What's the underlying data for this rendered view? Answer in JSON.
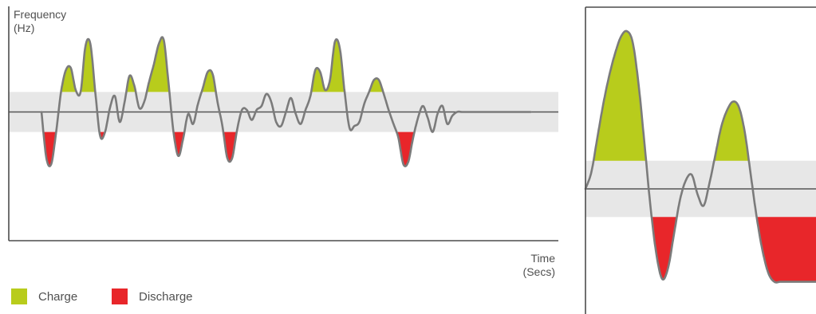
{
  "chart_data": [
    {
      "type": "line",
      "ylabel": "Frequency\n(Hz)",
      "xlabel": "Time\n(Secs)",
      "title": "",
      "grid": false,
      "deadband": [
        -1,
        1
      ],
      "x": [
        0,
        0.4,
        0.8,
        1.2,
        1.6,
        2.0,
        2.4,
        2.8,
        3.2,
        3.6,
        4.0,
        4.4,
        4.8,
        5.2,
        5.6,
        6.0,
        6.4,
        6.8,
        7.2,
        7.6,
        8.0,
        8.4,
        8.8,
        9.2,
        9.6,
        10.0,
        10.4,
        10.8,
        11.2,
        11.6,
        12.0,
        12.4,
        12.8,
        13.2,
        13.6,
        14.0,
        14.4,
        14.8,
        15.2,
        15.6,
        16.0,
        16.4,
        16.8,
        17.2,
        17.6,
        18.0,
        18.4,
        18.8,
        19.2,
        19.6,
        20.0,
        20.4,
        20.8,
        21.2,
        21.6,
        22.0,
        22.4,
        22.8,
        23.2,
        23.6,
        24.0,
        24.4,
        24.8,
        25.2,
        25.6,
        26.0,
        26.4,
        26.8,
        27.2,
        27.6,
        28.0,
        28.4,
        28.8,
        29.2,
        29.6,
        30.0,
        30.4,
        30.8,
        31.2,
        31.6,
        32.0,
        32.4,
        32.8,
        33.2,
        33.6,
        34.0,
        34.4,
        34.8,
        35.2,
        35.6,
        36.0,
        36.4,
        36.8,
        37.2,
        37.6,
        38.0,
        38.4,
        38.8,
        39.2,
        39.6,
        40.0
      ],
      "y": [
        0,
        -2.3,
        -2.6,
        -1.0,
        1.0,
        2.1,
        2.2,
        1.1,
        1.0,
        3.3,
        3.4,
        1.0,
        -1.2,
        -1.0,
        0.2,
        0.8,
        -0.5,
        0.5,
        1.8,
        1.3,
        0.2,
        0.5,
        1.5,
        2.4,
        3.4,
        3.6,
        1.4,
        -1.0,
        -2.2,
        -1.3,
        -0.1,
        -0.6,
        0.4,
        1.2,
        2.0,
        1.9,
        0.5,
        -0.7,
        -2.3,
        -2.3,
        -0.9,
        0.1,
        0.1,
        -0.4,
        0.1,
        0.3,
        0.9,
        0.5,
        -0.5,
        -0.7,
        0.0,
        0.7,
        -0.1,
        -0.6,
        0.1,
        0.8,
        2.1,
        2.0,
        1.1,
        1.6,
        3.5,
        3.2,
        1.0,
        -0.8,
        -0.7,
        -0.5,
        0.4,
        1.0,
        1.6,
        1.6,
        0.9,
        0.1,
        -0.6,
        -1.3,
        -2.6,
        -2.5,
        -1.3,
        -0.3,
        0.3,
        -0.3,
        -1.0,
        -0.1,
        0.3,
        -0.6,
        -0.2,
        0.0,
        0.0,
        0.0,
        0.0,
        0.0,
        0.0,
        0.0,
        0.0,
        0.0,
        0.0,
        0.0,
        0.0,
        0.0,
        0.0,
        0.0,
        0.0
      ],
      "xlim": [
        0,
        40
      ],
      "ylim": [
        -5,
        5
      ],
      "legend": [
        "Charge",
        "Discharge"
      ],
      "legend_position": "bottom-left"
    },
    {
      "type": "line",
      "title": "",
      "xlabel": "",
      "ylabel": "",
      "grid": false,
      "deadband": [
        -1,
        1
      ],
      "x": [
        0,
        0.2,
        0.4,
        0.6,
        0.8,
        1.0,
        1.2,
        1.4,
        1.6,
        1.8,
        2.0,
        2.2,
        2.4,
        2.6,
        2.8,
        3.0,
        3.2,
        3.4,
        3.6,
        3.8,
        4.0,
        4.2,
        4.4,
        4.6,
        4.8,
        5.0,
        5.2,
        5.4,
        5.6,
        5.8,
        6.0,
        6.2,
        6.4,
        6.6,
        6.8,
        7.0,
        7.2,
        7.4,
        7.6,
        7.8,
        8.0
      ],
      "y": [
        0,
        0.6,
        1.8,
        3.0,
        4.0,
        4.8,
        5.4,
        5.6,
        5.2,
        3.7,
        1.6,
        -0.6,
        -2.3,
        -3.2,
        -2.8,
        -1.6,
        -0.4,
        0.3,
        0.5,
        -0.2,
        -0.6,
        0.2,
        1.2,
        2.2,
        2.8,
        3.1,
        2.9,
        2.0,
        0.5,
        -1.0,
        -2.2,
        -3.0,
        -3.3,
        -3.3,
        -3.3,
        -3.3,
        -3.3,
        -3.3,
        -3.3,
        -3.3,
        -3.3
      ],
      "xlim": [
        0,
        8
      ],
      "ylim": [
        -6,
        6
      ]
    }
  ],
  "colors": {
    "charge": "#b8cc1c",
    "discharge": "#e8262a",
    "band": "#e7e7e7",
    "line": "#7b7b7b",
    "axis": "#4c4c4c"
  },
  "legend": {
    "charge_label": "Charge",
    "discharge_label": "Discharge"
  }
}
